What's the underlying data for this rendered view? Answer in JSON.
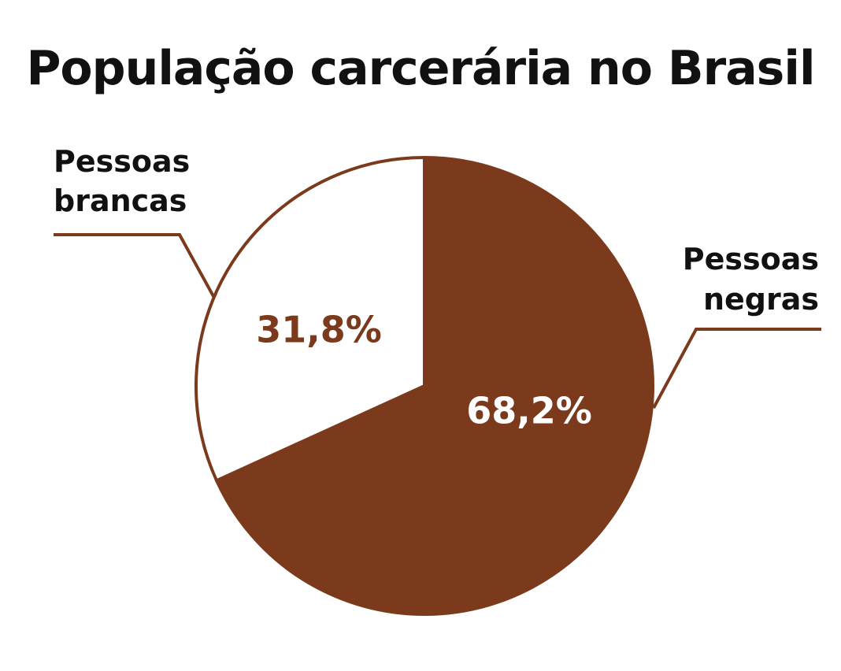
{
  "colors": {
    "accent": "#7b3a1c",
    "background": "#ffffff",
    "text": "#111111",
    "label_on_accent": "#ffffff"
  },
  "chart_data": {
    "type": "pie",
    "title": "População carcerária no Brasil",
    "slices": [
      {
        "label_lines": [
          "Pessoas",
          "negras"
        ],
        "value": 68.2,
        "value_text": "68,2%",
        "color": "#7b3a1c",
        "value_text_color": "#ffffff"
      },
      {
        "label_lines": [
          "Pessoas",
          "brancas"
        ],
        "value": 31.8,
        "value_text": "31,8%",
        "color": "#ffffff",
        "value_text_color": "#7b3a1c"
      }
    ]
  }
}
